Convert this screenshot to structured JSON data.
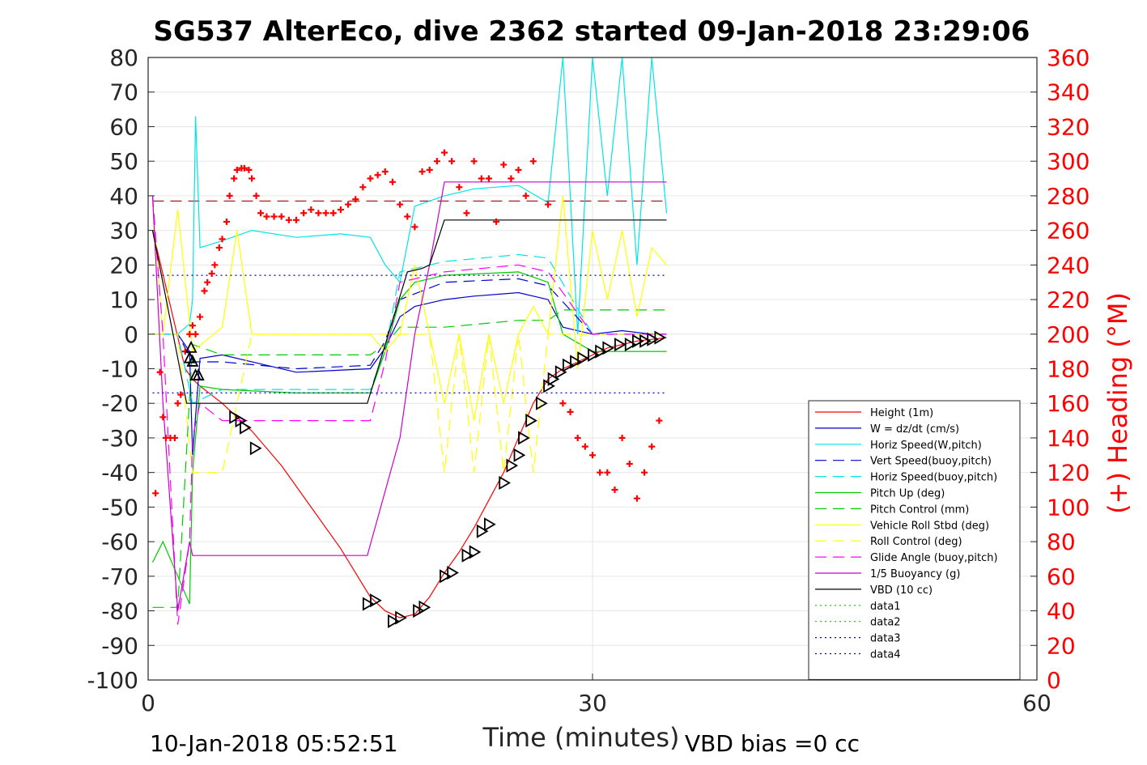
{
  "chart_data": {
    "type": "line",
    "title": "SG537 AlterEco, dive 2362 started 09-Jan-2018 23:29:06",
    "xlabel": "Time (minutes)",
    "ylabel_right": "(+) Heading (°M)",
    "footer_left": "10-Jan-2018 05:52:51",
    "footer_right": "VBD bias =0 cc",
    "xlim": [
      0,
      60
    ],
    "ylim": [
      -100,
      80
    ],
    "ylim_right": [
      0,
      360
    ],
    "x_ticks": [
      0,
      30,
      60
    ],
    "y_ticks": [
      -100,
      -90,
      -80,
      -70,
      -60,
      -50,
      -40,
      -30,
      -20,
      -10,
      0,
      10,
      20,
      30,
      40,
      50,
      60,
      70,
      80
    ],
    "y_ticks_right": [
      0,
      20,
      40,
      60,
      80,
      100,
      120,
      140,
      160,
      180,
      200,
      220,
      240,
      260,
      280,
      300,
      320,
      340,
      360
    ],
    "grid": true,
    "legend_position": "bottom-right",
    "series": [
      {
        "name": "Height (1m)",
        "color": "#ff0000",
        "style": "solid",
        "x": [
          0.3,
          2.5,
          3.0,
          3.5,
          5,
          7,
          9,
          11,
          13,
          15,
          16,
          17,
          18,
          19,
          20,
          21,
          22,
          23,
          24,
          25,
          26,
          27,
          28,
          29,
          30,
          31,
          32,
          33,
          34,
          35
        ],
        "y": [
          30,
          -10,
          -13,
          -15,
          -20,
          -28,
          -38,
          -50,
          -62,
          -76,
          -80,
          -82,
          -81,
          -76,
          -69,
          -63,
          -56,
          -48,
          -40,
          -30,
          -20,
          -13,
          -10,
          -8,
          -6,
          -4,
          -3,
          -2,
          -1.5,
          -1
        ]
      },
      {
        "name": "W = dz/dt (cm/s)",
        "color": "#0000cc",
        "style": "solid",
        "x": [
          0.3,
          1,
          2,
          2.8,
          3.0,
          3.5,
          5,
          10,
          15,
          16,
          17,
          18,
          20,
          22,
          25,
          27,
          28,
          30,
          32,
          34,
          35
        ],
        "y": [
          0,
          0,
          0,
          -5,
          -35,
          -7,
          -6,
          -11,
          -10,
          -4,
          5,
          8,
          10,
          11,
          12,
          10,
          2,
          0,
          1,
          0,
          0
        ]
      },
      {
        "name": "Horiz Speed(W,pitch)",
        "color": "#00e5e5",
        "style": "solid",
        "x": [
          0.3,
          2,
          2.8,
          3.0,
          3.2,
          3.5,
          5,
          7,
          10,
          13,
          15,
          16,
          17,
          18,
          20,
          22,
          25,
          27,
          28,
          29,
          30,
          31,
          32,
          33,
          34,
          35
        ],
        "y": [
          0,
          0,
          3,
          10,
          63,
          25,
          27,
          30,
          28,
          29,
          28,
          20,
          15,
          37,
          40,
          42,
          43,
          38,
          80,
          0,
          80,
          40,
          80,
          20,
          80,
          35
        ]
      },
      {
        "name": "Vert Speed(buoy,pitch)",
        "color": "#0000cc",
        "style": "dashed",
        "x": [
          0.3,
          2,
          3,
          5,
          10,
          15,
          16,
          17,
          20,
          25,
          27,
          30,
          35
        ],
        "y": [
          0,
          0,
          -8,
          -8,
          -10,
          -9,
          -2,
          10,
          15,
          16,
          14,
          0,
          0
        ]
      },
      {
        "name": "Horiz Speed(buoy,pitch)",
        "color": "#00e5e5",
        "style": "dashed",
        "x": [
          0.3,
          2,
          3,
          5,
          10,
          15,
          16,
          17,
          20,
          25,
          27,
          30,
          35
        ],
        "y": [
          0,
          0,
          -20,
          -16,
          -16,
          -16,
          -5,
          18,
          21,
          23,
          22,
          0,
          0
        ]
      },
      {
        "name": "Pitch Up (deg)",
        "color": "#00cc00",
        "style": "solid",
        "x": [
          0.3,
          1,
          2,
          2.8,
          3.0,
          3.5,
          5,
          10,
          15,
          16,
          17,
          18,
          20,
          25,
          27,
          28,
          30,
          32,
          35
        ],
        "y": [
          -66,
          -60,
          -70,
          -78,
          -40,
          -15,
          -16,
          -17,
          -17,
          -5,
          10,
          15,
          17,
          18,
          15,
          0,
          -5,
          -5,
          -5
        ]
      },
      {
        "name": "Pitch Control (mm)",
        "color": "#00cc00",
        "style": "dashed",
        "x": [
          0.3,
          2,
          3,
          5,
          15,
          16,
          17,
          20,
          25,
          27,
          28,
          35
        ],
        "y": [
          -79,
          -79,
          -3,
          -6,
          -6,
          -3,
          2,
          2,
          4,
          4,
          7,
          7
        ]
      },
      {
        "name": "Vehicle Roll Stbd (deg)",
        "color": "#ffff00",
        "style": "solid",
        "x": [
          0.3,
          1,
          2,
          3,
          5,
          6,
          7,
          10,
          15,
          16,
          17,
          18,
          19,
          20,
          21,
          22,
          23,
          24,
          25,
          26,
          27,
          28,
          29,
          30,
          31,
          32,
          33,
          34,
          35
        ],
        "y": [
          38,
          0,
          36,
          -5,
          2,
          30,
          0,
          0,
          0,
          -5,
          0,
          20,
          0,
          -20,
          0,
          -25,
          0,
          -20,
          0,
          8,
          0,
          40,
          -10,
          30,
          10,
          30,
          5,
          25,
          20
        ]
      },
      {
        "name": "Roll Control (deg)",
        "color": "#ffff00",
        "style": "dashed",
        "x": [
          0.3,
          2,
          3,
          5,
          7,
          15,
          17,
          19,
          20,
          21,
          22,
          23,
          24,
          25,
          26,
          27,
          30,
          35
        ],
        "y": [
          0,
          0,
          -40,
          -40,
          0,
          0,
          0,
          0,
          -40,
          0,
          -40,
          0,
          -40,
          0,
          -40,
          0,
          0,
          0
        ]
      },
      {
        "name": "Glide Angle (buoy,pitch)",
        "color": "#ff00ff",
        "style": "dashed",
        "x": [
          0.3,
          1,
          2,
          2.8,
          3.0,
          3.5,
          5,
          10,
          15,
          16,
          17,
          20,
          25,
          27,
          30,
          35
        ],
        "y": [
          40,
          0,
          -84,
          -60,
          -30,
          -20,
          -25,
          -25,
          -25,
          -8,
          15,
          18,
          20,
          18,
          0,
          0
        ]
      },
      {
        "name": "1/5 Buoyancy (g)",
        "color": "#cc00cc",
        "style": "solid",
        "x": [
          0.3,
          1,
          2,
          2.8,
          3.0,
          5,
          10,
          14.8,
          17,
          18,
          19,
          20,
          25,
          30,
          35
        ],
        "y": [
          40,
          -20,
          -80,
          -60,
          -64,
          -64,
          -64,
          -64,
          -30,
          0,
          20,
          44,
          44,
          44,
          44
        ]
      },
      {
        "name": "VBD (10 cc)",
        "color": "#000000",
        "style": "solid",
        "x": [
          0.3,
          2.6,
          3.0,
          14.8,
          17.5,
          18.5,
          19,
          20,
          35
        ],
        "y": [
          30,
          -20,
          -20,
          -20,
          18,
          19,
          20,
          33,
          33
        ]
      },
      {
        "name": "data1",
        "color": "#00cc00",
        "style": "dotted",
        "x": [],
        "y": []
      },
      {
        "name": "data2",
        "color": "#00cc00",
        "style": "dotted",
        "x": [],
        "y": []
      },
      {
        "name": "data3",
        "color": "#0000cc",
        "style": "dotted",
        "x": [
          0.3,
          35
        ],
        "y": [
          17,
          17
        ]
      },
      {
        "name": "data4",
        "color": "#0000cc",
        "style": "dotted",
        "x": [
          0.3,
          35
        ],
        "y": [
          -17,
          -17
        ]
      }
    ],
    "reference_line": {
      "color": "#aa0000",
      "style": "dashed",
      "y": 38.5,
      "x": [
        0.3,
        35
      ]
    },
    "heading_points": {
      "color": "#ff0000",
      "marker": "+",
      "x": [
        0.5,
        0.8,
        1.0,
        1.2,
        1.5,
        1.8,
        2.0,
        2.2,
        2.5,
        2.8,
        3.0,
        3.2,
        3.5,
        3.8,
        4.0,
        4.3,
        4.5,
        4.8,
        5.0,
        5.3,
        5.5,
        5.8,
        6.0,
        6.3,
        6.5,
        6.8,
        7.0,
        7.3,
        7.6,
        8.0,
        8.5,
        9,
        9.5,
        10,
        10.5,
        11,
        11.5,
        12,
        12.5,
        13,
        13.5,
        14,
        14.5,
        15,
        15.5,
        16,
        16.5,
        17,
        17.5,
        18,
        18.5,
        19,
        19.5,
        20,
        20.5,
        21,
        21.5,
        22,
        22.5,
        23,
        23.5,
        24,
        24.5,
        25,
        25.5,
        26,
        27,
        28,
        28.5,
        29,
        29.5,
        30,
        30.5,
        31,
        31.5,
        32,
        32.5,
        33,
        33.5,
        34,
        34.5
      ],
      "y": [
        108,
        178,
        152,
        140,
        140,
        140,
        160,
        165,
        190,
        200,
        205,
        200,
        210,
        225,
        230,
        235,
        240,
        250,
        255,
        265,
        280,
        290,
        295,
        296,
        296,
        295,
        290,
        280,
        270,
        268,
        268,
        268,
        266,
        266,
        270,
        272,
        270,
        270,
        270,
        272,
        275,
        278,
        285,
        290,
        292,
        294,
        288,
        275,
        268,
        262,
        294,
        295,
        300,
        305,
        300,
        285,
        270,
        300,
        290,
        290,
        265,
        298,
        290,
        295,
        280,
        300,
        275,
        160,
        155,
        140,
        135,
        130,
        120,
        120,
        110,
        140,
        125,
        105,
        120,
        135,
        150
      ]
    },
    "triangle_markers": {
      "color": "#000000",
      "x": [
        2.8,
        2.9,
        3.0,
        3.2,
        3.4,
        5.8,
        6.2,
        6.5,
        7.2,
        14.8,
        15.3,
        16.5,
        17.0,
        18.2,
        18.6,
        20.0,
        20.5,
        21.5,
        22.0,
        22.5,
        23.0,
        24.0,
        24.5,
        25.0,
        25.3,
        25.8,
        26.5,
        27.0,
        27.3,
        27.8,
        28.3,
        28.8,
        29.3,
        30.0,
        30.5,
        31.0,
        31.8,
        32.5,
        33.0,
        33.5,
        34.0,
        34.5
      ],
      "y": [
        -7,
        -4,
        -8,
        -12,
        -12,
        -24,
        -25,
        -27,
        -33,
        -78,
        -77,
        -83,
        -82,
        -80,
        -79,
        -70,
        -69,
        -64,
        -63,
        -57,
        -55,
        -43,
        -38,
        -35,
        -30,
        -25,
        -20,
        -15,
        -13,
        -11,
        -9,
        -8,
        -7,
        -6,
        -5,
        -4,
        -3,
        -3,
        -2,
        -2,
        -1.5,
        -1
      ]
    }
  }
}
